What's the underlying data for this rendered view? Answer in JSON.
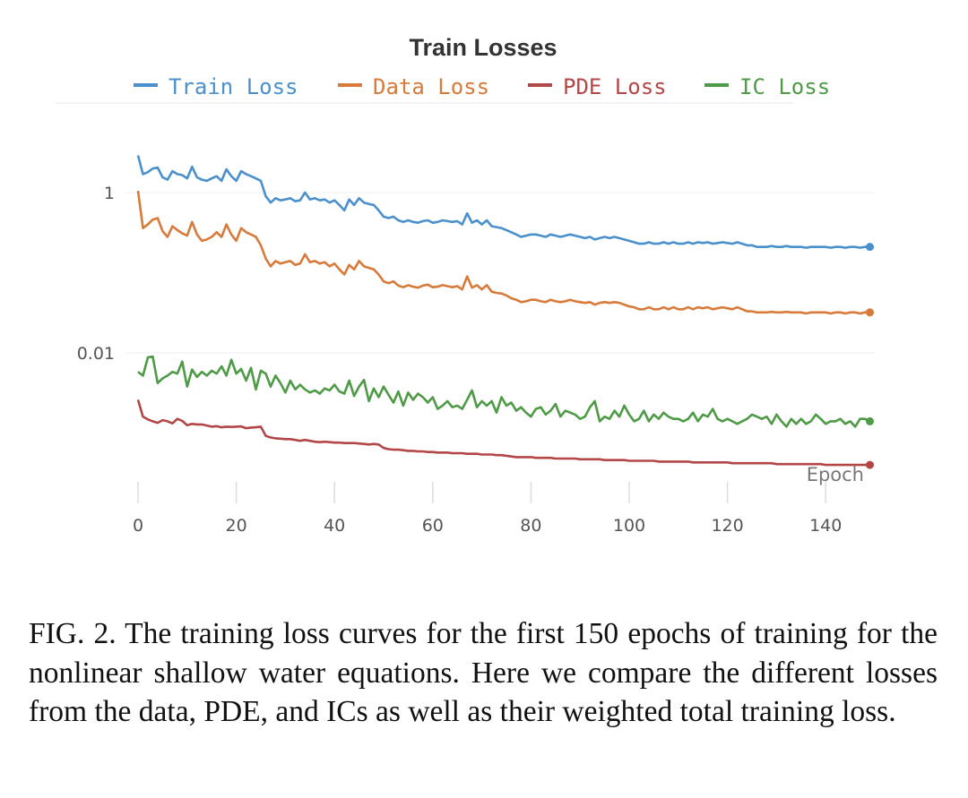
{
  "chart_data": {
    "type": "line",
    "title": "Train Losses",
    "xlabel": "Epoch",
    "ylabel": "",
    "yscale": "log",
    "xlim": [
      0,
      150
    ],
    "ylim": [
      0.0003,
      10
    ],
    "x_ticks": [
      0,
      20,
      40,
      60,
      80,
      100,
      120,
      140
    ],
    "y_ticks": [
      {
        "value": 1,
        "label": "1"
      },
      {
        "value": 0.01,
        "label": "0.01"
      }
    ],
    "legend_position": "top",
    "series": [
      {
        "name": "Train Loss",
        "color": "#4a90cc",
        "values": [
          2.9,
          1.7,
          1.8,
          2.0,
          2.05,
          1.55,
          1.45,
          1.85,
          1.7,
          1.65,
          1.5,
          2.1,
          1.55,
          1.45,
          1.4,
          1.5,
          1.6,
          1.4,
          1.95,
          1.6,
          1.4,
          1.85,
          1.7,
          1.6,
          1.5,
          1.4,
          0.9,
          0.75,
          0.85,
          0.8,
          0.82,
          0.85,
          0.78,
          0.8,
          1.0,
          0.82,
          0.85,
          0.8,
          0.82,
          0.75,
          0.8,
          0.7,
          0.6,
          0.82,
          0.7,
          0.85,
          0.75,
          0.72,
          0.7,
          0.6,
          0.5,
          0.48,
          0.5,
          0.45,
          0.43,
          0.45,
          0.43,
          0.42,
          0.44,
          0.45,
          0.42,
          0.43,
          0.45,
          0.44,
          0.43,
          0.44,
          0.4,
          0.55,
          0.42,
          0.45,
          0.4,
          0.45,
          0.38,
          0.37,
          0.36,
          0.34,
          0.32,
          0.3,
          0.28,
          0.29,
          0.3,
          0.3,
          0.29,
          0.28,
          0.3,
          0.29,
          0.28,
          0.29,
          0.3,
          0.29,
          0.28,
          0.27,
          0.28,
          0.26,
          0.27,
          0.28,
          0.27,
          0.28,
          0.27,
          0.26,
          0.25,
          0.24,
          0.23,
          0.23,
          0.24,
          0.23,
          0.23,
          0.24,
          0.23,
          0.24,
          0.23,
          0.23,
          0.24,
          0.23,
          0.24,
          0.235,
          0.24,
          0.23,
          0.235,
          0.24,
          0.235,
          0.23,
          0.24,
          0.23,
          0.22,
          0.22,
          0.21,
          0.21,
          0.21,
          0.215,
          0.21,
          0.21,
          0.215,
          0.21,
          0.21,
          0.21,
          0.205,
          0.21,
          0.21,
          0.21,
          0.21,
          0.205,
          0.21,
          0.21,
          0.205,
          0.21,
          0.21,
          0.205,
          0.21,
          0.21
        ]
      },
      {
        "name": "Data Loss",
        "color": "#d87a3a",
        "values": [
          1.05,
          0.36,
          0.4,
          0.46,
          0.48,
          0.33,
          0.28,
          0.38,
          0.34,
          0.31,
          0.29,
          0.43,
          0.3,
          0.25,
          0.26,
          0.28,
          0.32,
          0.28,
          0.4,
          0.3,
          0.25,
          0.36,
          0.32,
          0.3,
          0.28,
          0.22,
          0.15,
          0.12,
          0.14,
          0.13,
          0.135,
          0.14,
          0.125,
          0.13,
          0.17,
          0.135,
          0.14,
          0.13,
          0.135,
          0.12,
          0.13,
          0.11,
          0.095,
          0.125,
          0.11,
          0.14,
          0.12,
          0.115,
          0.11,
          0.095,
          0.078,
          0.074,
          0.078,
          0.069,
          0.066,
          0.07,
          0.067,
          0.065,
          0.069,
          0.071,
          0.066,
          0.067,
          0.07,
          0.068,
          0.066,
          0.068,
          0.062,
          0.09,
          0.065,
          0.07,
          0.062,
          0.07,
          0.058,
          0.056,
          0.055,
          0.052,
          0.048,
          0.046,
          0.043,
          0.044,
          0.046,
          0.046,
          0.044,
          0.043,
          0.046,
          0.044,
          0.043,
          0.044,
          0.046,
          0.044,
          0.043,
          0.042,
          0.043,
          0.04,
          0.042,
          0.043,
          0.042,
          0.043,
          0.042,
          0.04,
          0.038,
          0.037,
          0.035,
          0.035,
          0.037,
          0.035,
          0.035,
          0.037,
          0.035,
          0.037,
          0.035,
          0.035,
          0.037,
          0.035,
          0.037,
          0.036,
          0.037,
          0.035,
          0.036,
          0.037,
          0.036,
          0.035,
          0.037,
          0.035,
          0.033,
          0.033,
          0.032,
          0.032,
          0.032,
          0.0325,
          0.032,
          0.032,
          0.0325,
          0.032,
          0.032,
          0.032,
          0.031,
          0.032,
          0.032,
          0.032,
          0.032,
          0.031,
          0.032,
          0.032,
          0.031,
          0.032,
          0.032,
          0.031,
          0.032,
          0.032
        ]
      },
      {
        "name": "PDE Loss",
        "color": "#b34747",
        "values": [
          0.0026,
          0.0016,
          0.00148,
          0.0014,
          0.00134,
          0.00145,
          0.0014,
          0.00132,
          0.0015,
          0.00142,
          0.00125,
          0.0013,
          0.00128,
          0.00128,
          0.00124,
          0.0012,
          0.00122,
          0.00118,
          0.0012,
          0.00119,
          0.0012,
          0.00121,
          0.00115,
          0.00117,
          0.00118,
          0.0012,
          0.00092,
          0.00088,
          0.00086,
          0.00085,
          0.00084,
          0.00084,
          0.00082,
          0.0008,
          0.00082,
          0.0008,
          0.00078,
          0.00077,
          0.00078,
          0.00077,
          0.00076,
          0.00076,
          0.00075,
          0.00075,
          0.00075,
          0.00074,
          0.00073,
          0.00072,
          0.00073,
          0.00072,
          0.00065,
          0.00063,
          0.00062,
          0.00062,
          0.00061,
          0.0006,
          0.0006,
          0.00059,
          0.00059,
          0.00058,
          0.00058,
          0.00057,
          0.00057,
          0.00057,
          0.00056,
          0.00056,
          0.00056,
          0.00055,
          0.00055,
          0.00055,
          0.00054,
          0.00054,
          0.00054,
          0.00053,
          0.00053,
          0.00052,
          0.00051,
          0.0005,
          0.0005,
          0.0005,
          0.0005,
          0.00049,
          0.00049,
          0.00049,
          0.00049,
          0.00048,
          0.00048,
          0.00048,
          0.00048,
          0.00048,
          0.00047,
          0.00047,
          0.00047,
          0.00047,
          0.00047,
          0.00046,
          0.00046,
          0.00046,
          0.00046,
          0.00046,
          0.00045,
          0.00045,
          0.00045,
          0.00045,
          0.00045,
          0.00045,
          0.00044,
          0.00044,
          0.00044,
          0.00044,
          0.00044,
          0.00044,
          0.00044,
          0.00043,
          0.00043,
          0.00043,
          0.00043,
          0.00043,
          0.00043,
          0.00043,
          0.00043,
          0.00042,
          0.00042,
          0.00042,
          0.00042,
          0.00042,
          0.00042,
          0.00042,
          0.00042,
          0.00042,
          0.00041,
          0.00041,
          0.00041,
          0.00041,
          0.00041,
          0.00041,
          0.00041,
          0.00041,
          0.00041,
          0.00041,
          0.0004,
          0.0004,
          0.0004,
          0.0004,
          0.0004,
          0.0004,
          0.0004,
          0.0004,
          0.0004,
          0.0004
        ]
      },
      {
        "name": "IC Loss",
        "color": "#4e9a46",
        "values": [
          0.0058,
          0.0052,
          0.0088,
          0.009,
          0.0042,
          0.0048,
          0.0052,
          0.0058,
          0.0055,
          0.0078,
          0.0038,
          0.0062,
          0.005,
          0.0058,
          0.0052,
          0.006,
          0.0055,
          0.0068,
          0.0052,
          0.0082,
          0.0055,
          0.0063,
          0.0045,
          0.0065,
          0.0035,
          0.006,
          0.0055,
          0.0038,
          0.0052,
          0.0042,
          0.0032,
          0.0045,
          0.0035,
          0.004,
          0.0035,
          0.0032,
          0.0034,
          0.0031,
          0.0036,
          0.0034,
          0.004,
          0.0033,
          0.0031,
          0.0045,
          0.0029,
          0.0038,
          0.0046,
          0.0025,
          0.0036,
          0.0028,
          0.0038,
          0.003,
          0.0024,
          0.0033,
          0.0022,
          0.0032,
          0.0026,
          0.0031,
          0.0028,
          0.0024,
          0.0028,
          0.002,
          0.0022,
          0.0025,
          0.0021,
          0.0022,
          0.002,
          0.0026,
          0.0034,
          0.0021,
          0.0025,
          0.0022,
          0.0025,
          0.0018,
          0.0028,
          0.0022,
          0.0024,
          0.0019,
          0.0021,
          0.0018,
          0.0016,
          0.002,
          0.0021,
          0.0017,
          0.0019,
          0.0023,
          0.0016,
          0.0019,
          0.0018,
          0.0017,
          0.0015,
          0.0016,
          0.0021,
          0.0025,
          0.0014,
          0.0016,
          0.0015,
          0.0019,
          0.0016,
          0.0022,
          0.0017,
          0.0014,
          0.0015,
          0.0019,
          0.0014,
          0.0017,
          0.0015,
          0.0018,
          0.0016,
          0.0015,
          0.0015,
          0.0014,
          0.0015,
          0.0018,
          0.0014,
          0.0017,
          0.0016,
          0.002,
          0.0015,
          0.0014,
          0.0015,
          0.0014,
          0.0013,
          0.0014,
          0.0015,
          0.0017,
          0.0016,
          0.0015,
          0.0016,
          0.0013,
          0.0017,
          0.0014,
          0.0012,
          0.0015,
          0.0013,
          0.0015,
          0.0013,
          0.0014,
          0.0017,
          0.0015,
          0.0013,
          0.0014,
          0.0014,
          0.0015,
          0.0013,
          0.0014,
          0.0012,
          0.0015,
          0.0015,
          0.0014
        ]
      }
    ]
  },
  "caption": "FIG. 2. The training loss curves for the first 150 epochs of training for the nonlinear shallow water equations. Here we compare the different losses from the data, PDE, and ICs as well as their weighted total training loss."
}
